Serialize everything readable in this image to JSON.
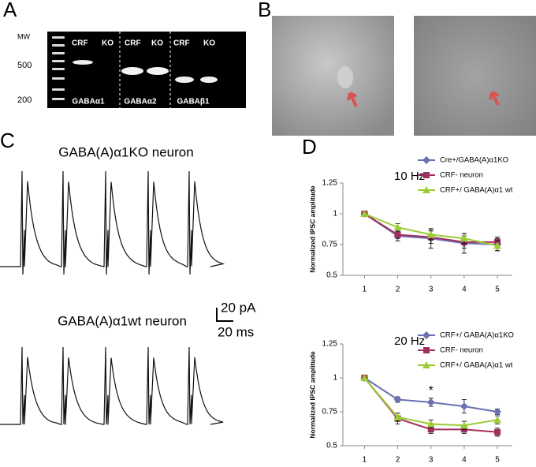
{
  "panel_labels": [
    "A",
    "B",
    "C",
    "D"
  ],
  "gel": {
    "mw_label": "MW",
    "size_labels": [
      "500",
      "200"
    ],
    "groups": [
      {
        "lanes": [
          "CRF",
          "KO"
        ],
        "name": "GABAα1"
      },
      {
        "lanes": [
          "CRF",
          "KO"
        ],
        "name": "GABAα2"
      },
      {
        "lanes": [
          "CRF",
          "KO"
        ],
        "name": "GABAβ1"
      }
    ]
  },
  "traces": {
    "titles": [
      "GABA(A)α1KO neuron",
      "GABA(A)α1wt neuron"
    ],
    "scale_y": "20 pA",
    "scale_x": "20 ms"
  },
  "chart_data": [
    {
      "type": "line",
      "title": "10 Hz",
      "y_label": "Normalized IPSC amplitude",
      "x": [
        1,
        2,
        3,
        4,
        5
      ],
      "xlim": [
        0.35,
        5.45
      ],
      "xticks": [
        1,
        2,
        3,
        4,
        5
      ],
      "ylim": [
        0.5,
        1.25
      ],
      "yticks": [
        0.5,
        0.75,
        1,
        1.25
      ],
      "series": [
        {
          "name": "Cre+/GABA(A)α1KO",
          "color": "#6b70b3",
          "marker": "diamond",
          "values": [
            1,
            0.82,
            0.8,
            0.76,
            0.75
          ],
          "errors": [
            0,
            0.04,
            0.08,
            0.08,
            0.05
          ]
        },
        {
          "name": "CRF- neuron",
          "color": "#a2305f",
          "marker": "square",
          "values": [
            1,
            0.83,
            0.81,
            0.77,
            0.77
          ],
          "errors": [
            0,
            0.03,
            0.05,
            0.05,
            0.04
          ]
        },
        {
          "name": "CRF+/ GABA(A)α1 wt",
          "color": "#9acd32",
          "marker": "triangle",
          "values": [
            1,
            0.89,
            0.83,
            0.8,
            0.74
          ],
          "errors": [
            0,
            0.03,
            0.04,
            0.04,
            0.04
          ]
        }
      ]
    },
    {
      "type": "line",
      "title": "20 Hz",
      "y_label": "Normalized IPSC amplitude",
      "annotation": "*",
      "x": [
        1,
        2,
        3,
        4,
        5
      ],
      "xlim": [
        0.35,
        5.45
      ],
      "xticks": [
        1,
        2,
        3,
        4,
        5
      ],
      "ylim": [
        0.5,
        1.25
      ],
      "yticks": [
        0.5,
        0.75,
        1,
        1.25
      ],
      "series": [
        {
          "name": "CRF+/ GABA(A)α1KO",
          "color": "#6b70b3",
          "marker": "diamond",
          "values": [
            1,
            0.84,
            0.82,
            0.79,
            0.75
          ],
          "errors": [
            0,
            0.02,
            0.03,
            0.05,
            0.02
          ]
        },
        {
          "name": "CRF- neuron",
          "color": "#a2305f",
          "marker": "square",
          "values": [
            1,
            0.7,
            0.62,
            0.62,
            0.6
          ],
          "errors": [
            0,
            0.04,
            0.03,
            0.03,
            0.03
          ]
        },
        {
          "name": "CRF+/ GABA(A)α1 wt",
          "color": "#9acd32",
          "marker": "triangle",
          "values": [
            1,
            0.71,
            0.66,
            0.65,
            0.69
          ],
          "errors": [
            0,
            0.03,
            0.03,
            0.03,
            0.03
          ]
        }
      ]
    }
  ]
}
